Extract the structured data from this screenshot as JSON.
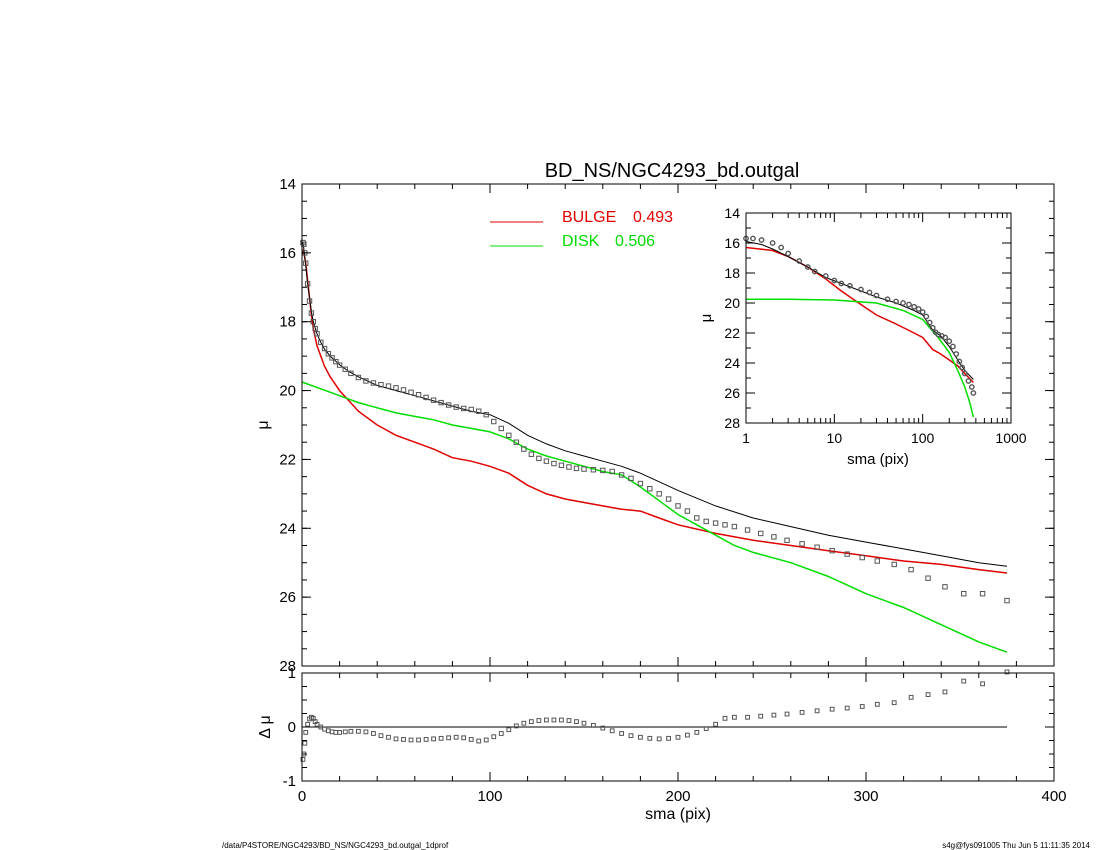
{
  "title": "BD_NS/NGC4293_bd.outgal",
  "footer_left": "/data/P4STORE/NGC4293/BD_NS/NGC4293_bd.outgal_1dprof",
  "footer_right": "s4g@fys091005  Thu Jun  5 11:11:35 2014",
  "colors": {
    "bulge": "#e00000",
    "disk": "#00dd00",
    "total": "#000000",
    "data": "#555555"
  },
  "chart_data": [
    {
      "type": "line",
      "panel": "main",
      "xlabel": "sma (pix)",
      "ylabel": "μ",
      "xlim": [
        0,
        400
      ],
      "ylim": [
        28,
        14
      ],
      "x_ticks": [
        "0",
        "100",
        "200",
        "300",
        "400"
      ],
      "y_ticks": [
        "14",
        "16",
        "18",
        "20",
        "22",
        "24",
        "26",
        "28"
      ],
      "legend": [
        {
          "label": "BULGE",
          "value": "0.493",
          "color": "#e00000"
        },
        {
          "label": "DISK",
          "value": "0.506",
          "color": "#00dd00"
        }
      ],
      "legend_placement": "top-center",
      "series": [
        {
          "name": "BULGE",
          "color": "#e00000",
          "x": [
            0.5,
            1,
            2,
            3,
            4,
            5,
            6,
            8,
            10,
            12,
            15,
            20,
            25,
            30,
            40,
            50,
            60,
            70,
            80,
            90,
            100,
            110,
            120,
            130,
            140,
            150,
            160,
            170,
            180,
            190,
            200,
            220,
            240,
            260,
            280,
            300,
            320,
            340,
            360,
            375
          ],
          "y": [
            15.9,
            16.0,
            16.3,
            16.8,
            17.3,
            17.8,
            18.2,
            18.7,
            19.0,
            19.3,
            19.6,
            20.0,
            20.3,
            20.6,
            21.0,
            21.3,
            21.5,
            21.7,
            21.95,
            22.05,
            22.2,
            22.4,
            22.75,
            23.0,
            23.15,
            23.25,
            23.35,
            23.45,
            23.5,
            23.7,
            23.9,
            24.15,
            24.35,
            24.5,
            24.65,
            24.8,
            24.95,
            25.05,
            25.2,
            25.3
          ]
        },
        {
          "name": "DISK",
          "color": "#00dd00",
          "x": [
            0,
            10,
            20,
            30,
            40,
            50,
            60,
            70,
            80,
            90,
            100,
            110,
            120,
            130,
            140,
            150,
            160,
            170,
            180,
            190,
            200,
            210,
            220,
            230,
            240,
            260,
            280,
            300,
            320,
            340,
            360,
            375
          ],
          "y": [
            19.75,
            19.95,
            20.15,
            20.35,
            20.5,
            20.65,
            20.75,
            20.85,
            21.0,
            21.1,
            21.2,
            21.4,
            21.7,
            21.9,
            22.05,
            22.2,
            22.35,
            22.45,
            22.8,
            23.2,
            23.6,
            23.9,
            24.2,
            24.5,
            24.7,
            25.0,
            25.4,
            25.9,
            26.3,
            26.8,
            27.3,
            27.6
          ]
        },
        {
          "name": "",
          "color": "#000000",
          "x": [
            0.5,
            1,
            2,
            3,
            4,
            5,
            6,
            8,
            10,
            12,
            15,
            20,
            25,
            30,
            40,
            50,
            60,
            70,
            80,
            90,
            100,
            110,
            120,
            130,
            140,
            150,
            160,
            170,
            180,
            190,
            200,
            220,
            240,
            260,
            280,
            300,
            320,
            340,
            360,
            375
          ],
          "y": [
            15.7,
            15.9,
            16.4,
            16.9,
            17.3,
            17.7,
            18.0,
            18.35,
            18.6,
            18.8,
            19.0,
            19.25,
            19.45,
            19.6,
            19.85,
            20.0,
            20.15,
            20.3,
            20.45,
            20.6,
            20.7,
            20.95,
            21.3,
            21.55,
            21.75,
            21.9,
            22.05,
            22.2,
            22.4,
            22.65,
            22.9,
            23.35,
            23.7,
            23.95,
            24.2,
            24.4,
            24.6,
            24.8,
            25.0,
            25.1
          ]
        },
        {
          "name": "",
          "color": "#555555",
          "marker": "square",
          "x": [
            0.5,
            1,
            1.5,
            2,
            3,
            4,
            5,
            6,
            7,
            8,
            10,
            12,
            14,
            16,
            18,
            20,
            23,
            26,
            30,
            34,
            38,
            42,
            46,
            50,
            54,
            58,
            62,
            66,
            70,
            74,
            78,
            82,
            86,
            90,
            94,
            98,
            102,
            106,
            110,
            114,
            118,
            122,
            126,
            130,
            134,
            138,
            142,
            146,
            150,
            155,
            160,
            165,
            170,
            175,
            180,
            185,
            190,
            195,
            200,
            205,
            210,
            215,
            220,
            225,
            230,
            237,
            244,
            251,
            258,
            266,
            274,
            282,
            290,
            298,
            306,
            315,
            324,
            333,
            342,
            352,
            362,
            375
          ],
          "y": [
            15.7,
            15.75,
            16.0,
            16.3,
            16.9,
            17.4,
            17.75,
            18.0,
            18.2,
            18.35,
            18.6,
            18.78,
            18.93,
            19.05,
            19.16,
            19.26,
            19.38,
            19.5,
            19.62,
            19.72,
            19.78,
            19.83,
            19.87,
            19.92,
            19.98,
            20.05,
            20.12,
            20.2,
            20.28,
            20.35,
            20.42,
            20.48,
            20.52,
            20.55,
            20.6,
            20.7,
            20.9,
            21.1,
            21.3,
            21.5,
            21.7,
            21.85,
            21.97,
            22.05,
            22.12,
            22.17,
            22.22,
            22.26,
            22.28,
            22.3,
            22.32,
            22.35,
            22.45,
            22.55,
            22.7,
            22.85,
            23.0,
            23.15,
            23.35,
            23.5,
            23.7,
            23.8,
            23.85,
            23.9,
            23.95,
            24.05,
            24.15,
            24.25,
            24.35,
            24.45,
            24.55,
            24.65,
            24.75,
            24.85,
            24.95,
            25.05,
            25.2,
            25.45,
            25.7,
            25.9,
            25.9,
            26.1
          ]
        }
      ]
    },
    {
      "type": "scatter",
      "panel": "residual",
      "xlabel": "sma (pix)",
      "ylabel": "Δ μ",
      "xlim": [
        0,
        400
      ],
      "ylim": [
        -1,
        1
      ],
      "x_ticks": [
        "0",
        "100",
        "200",
        "300",
        "400"
      ],
      "y_ticks": [
        "1",
        "0",
        "-1"
      ],
      "series": [
        {
          "name": "",
          "color": "#555555",
          "marker": "square",
          "x": [
            0.5,
            1,
            1.5,
            2,
            3,
            4,
            5,
            6,
            7,
            8,
            10,
            12,
            14,
            16,
            18,
            20,
            23,
            26,
            30,
            34,
            38,
            42,
            46,
            50,
            54,
            58,
            62,
            66,
            70,
            74,
            78,
            82,
            86,
            90,
            94,
            98,
            102,
            106,
            110,
            114,
            118,
            122,
            126,
            130,
            134,
            138,
            142,
            146,
            150,
            155,
            160,
            165,
            170,
            175,
            180,
            185,
            190,
            195,
            200,
            205,
            210,
            215,
            220,
            225,
            230,
            237,
            244,
            251,
            258,
            266,
            274,
            282,
            290,
            298,
            306,
            315,
            324,
            333,
            342,
            352,
            362,
            375
          ],
          "y": [
            -0.6,
            -0.5,
            -0.3,
            -0.1,
            0.05,
            0.15,
            0.18,
            0.16,
            0.1,
            0.05,
            0.0,
            -0.04,
            -0.07,
            -0.09,
            -0.1,
            -0.1,
            -0.09,
            -0.08,
            -0.08,
            -0.09,
            -0.12,
            -0.16,
            -0.19,
            -0.22,
            -0.23,
            -0.24,
            -0.24,
            -0.23,
            -0.22,
            -0.21,
            -0.2,
            -0.19,
            -0.2,
            -0.23,
            -0.26,
            -0.24,
            -0.18,
            -0.12,
            -0.05,
            0.02,
            0.07,
            0.1,
            0.12,
            0.13,
            0.13,
            0.13,
            0.12,
            0.1,
            0.07,
            0.03,
            -0.02,
            -0.07,
            -0.12,
            -0.16,
            -0.19,
            -0.21,
            -0.22,
            -0.21,
            -0.19,
            -0.15,
            -0.1,
            -0.03,
            0.05,
            0.16,
            0.18,
            0.18,
            0.2,
            0.22,
            0.24,
            0.27,
            0.3,
            0.33,
            0.35,
            0.38,
            0.42,
            0.45,
            0.55,
            0.6,
            0.65,
            0.85,
            0.8,
            1.02
          ]
        }
      ],
      "reference_line": 0
    },
    {
      "type": "line",
      "panel": "inset",
      "xlabel": "sma (pix)",
      "ylabel": "μ",
      "xscale": "log",
      "xlim": [
        1,
        1000
      ],
      "ylim": [
        28,
        14
      ],
      "x_ticks": [
        "1",
        "10",
        "100",
        "1000"
      ],
      "y_ticks": [
        "14",
        "16",
        "18",
        "20",
        "22",
        "24",
        "26",
        "28"
      ],
      "series": [
        {
          "name": "BULGE",
          "color": "#e00000",
          "x": [
            1,
            2,
            3,
            5,
            8,
            12,
            20,
            30,
            50,
            80,
            100,
            130,
            160,
            200,
            250,
            300,
            375
          ],
          "y": [
            16.3,
            16.5,
            16.9,
            17.6,
            18.4,
            19.2,
            20.1,
            20.8,
            21.4,
            22.0,
            22.3,
            23.1,
            23.4,
            23.8,
            24.2,
            24.7,
            25.3
          ]
        },
        {
          "name": "DISK",
          "color": "#00dd00",
          "x": [
            1,
            3,
            10,
            30,
            60,
            100,
            150,
            200,
            250,
            300,
            340,
            375
          ],
          "y": [
            19.75,
            19.75,
            19.8,
            20.0,
            20.5,
            21.1,
            22.3,
            23.3,
            24.5,
            25.6,
            26.6,
            27.6
          ]
        },
        {
          "name": "",
          "color": "#000000",
          "x": [
            1,
            1.5,
            2,
            3,
            5,
            8,
            12,
            20,
            30,
            50,
            80,
            100,
            130,
            160,
            200,
            250,
            300,
            375
          ],
          "y": [
            15.9,
            16.1,
            16.4,
            16.9,
            17.6,
            18.3,
            18.7,
            19.2,
            19.6,
            20.0,
            20.5,
            20.8,
            21.8,
            22.2,
            22.9,
            23.8,
            24.5,
            25.1
          ]
        },
        {
          "name": "",
          "color": "#555555",
          "marker": "circle",
          "x": [
            1,
            1.2,
            1.5,
            2,
            2.5,
            3,
            4,
            5,
            6,
            8,
            10,
            12,
            15,
            20,
            25,
            30,
            40,
            50,
            60,
            70,
            80,
            90,
            100,
            110,
            120,
            130,
            140,
            150,
            165,
            180,
            200,
            220,
            240,
            260,
            280,
            300,
            330,
            360,
            375
          ],
          "y": [
            15.7,
            15.7,
            15.8,
            16.0,
            16.3,
            16.7,
            17.2,
            17.6,
            17.9,
            18.2,
            18.5,
            18.7,
            18.85,
            19.1,
            19.3,
            19.5,
            19.75,
            19.9,
            20.0,
            20.1,
            20.25,
            20.4,
            20.6,
            20.9,
            21.3,
            21.65,
            21.95,
            22.1,
            22.2,
            22.3,
            22.55,
            22.9,
            23.4,
            23.9,
            24.3,
            24.7,
            25.2,
            25.6,
            26.0
          ]
        }
      ]
    }
  ]
}
